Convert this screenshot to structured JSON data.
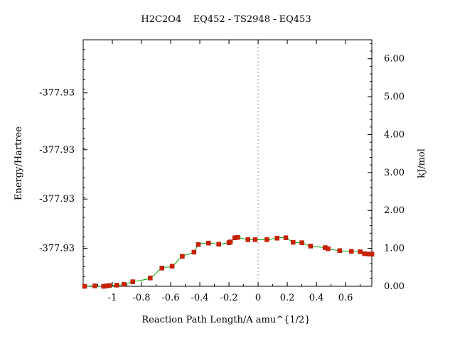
{
  "chart_data": {
    "type": "line",
    "title": "H2C2O4    EQ452 - TS2948 - EQ453",
    "xlabel": "Reaction Path Length/A amu^{1/2}",
    "ylabel_left": "Energy/Hartree",
    "ylabel_right": "kJ/mol",
    "xlim": [
      -1.2,
      0.78
    ],
    "ylim_right": [
      0.0,
      6.5
    ],
    "x_ticks": [
      -1,
      -0.8,
      -0.6,
      -0.4,
      -0.2,
      0,
      0.2,
      0.4,
      0.6
    ],
    "x_tick_labels": [
      "-1",
      "-0.8",
      "-0.6",
      "-0.4",
      "-0.2",
      "0",
      "0.2",
      "0.4",
      "0.6"
    ],
    "y_left_ticks_kjmol": [
      1.0,
      2.3,
      3.6,
      5.1
    ],
    "y_left_tick_labels": [
      "-377.93",
      "-377.93",
      "-377.93",
      "-377.93"
    ],
    "y_right_ticks": [
      0.0,
      1.0,
      2.0,
      3.0,
      4.0,
      5.0,
      6.0
    ],
    "y_right_tick_labels": [
      "0.00",
      "1.00",
      "2.00",
      "3.00",
      "4.00",
      "5.00",
      "6.00"
    ],
    "ts_marker_x": 0,
    "grid": false,
    "colors": {
      "curve": "#00aa00",
      "points": "#cc2200",
      "ts_line": "#999999",
      "axes": "#000000"
    },
    "series": [
      {
        "points": [
          {
            "x": -1.19,
            "y": 0.0
          },
          {
            "x": -1.12,
            "y": 0.01
          },
          {
            "x": -1.06,
            "y": 0.0
          },
          {
            "x": -1.04,
            "y": 0.01
          },
          {
            "x": -1.02,
            "y": 0.02
          },
          {
            "x": -0.97,
            "y": 0.03
          },
          {
            "x": -0.92,
            "y": 0.05
          },
          {
            "x": -0.86,
            "y": 0.12
          },
          {
            "x": -0.74,
            "y": 0.22
          },
          {
            "x": -0.66,
            "y": 0.48
          },
          {
            "x": -0.59,
            "y": 0.53
          },
          {
            "x": -0.52,
            "y": 0.79
          },
          {
            "x": -0.44,
            "y": 0.9
          },
          {
            "x": -0.41,
            "y": 1.1
          },
          {
            "x": -0.34,
            "y": 1.14
          },
          {
            "x": -0.27,
            "y": 1.11
          },
          {
            "x": -0.2,
            "y": 1.15
          },
          {
            "x": -0.19,
            "y": 1.17
          },
          {
            "x": -0.16,
            "y": 1.28
          },
          {
            "x": -0.14,
            "y": 1.29
          },
          {
            "x": -0.07,
            "y": 1.23
          },
          {
            "x": -0.02,
            "y": 1.23
          },
          {
            "x": 0.06,
            "y": 1.23
          },
          {
            "x": 0.13,
            "y": 1.27
          },
          {
            "x": 0.19,
            "y": 1.28
          },
          {
            "x": 0.24,
            "y": 1.16
          },
          {
            "x": 0.3,
            "y": 1.15
          },
          {
            "x": 0.36,
            "y": 1.06
          },
          {
            "x": 0.46,
            "y": 1.02
          },
          {
            "x": 0.48,
            "y": 0.99
          },
          {
            "x": 0.56,
            "y": 0.94
          },
          {
            "x": 0.64,
            "y": 0.92
          },
          {
            "x": 0.7,
            "y": 0.91
          },
          {
            "x": 0.73,
            "y": 0.86
          },
          {
            "x": 0.76,
            "y": 0.85
          },
          {
            "x": 0.78,
            "y": 0.85
          }
        ]
      }
    ]
  }
}
